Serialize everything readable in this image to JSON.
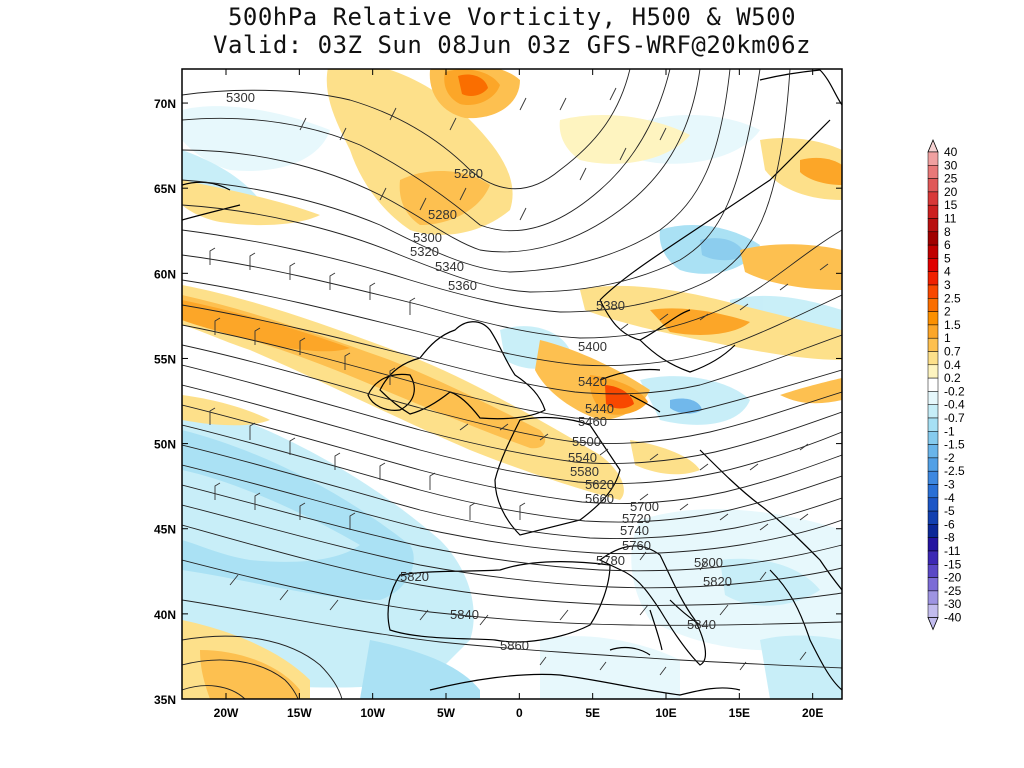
{
  "title": {
    "line1": "500hPa Relative Vorticity, H500 & W500",
    "line2": "Valid: 03Z Sun 08Jun 03z GFS-WRF@20km06z"
  },
  "map": {
    "lon_range": [
      -23,
      22
    ],
    "lat_range": [
      35,
      72
    ],
    "x_ticks": [
      "20W",
      "15W",
      "10W",
      "5W",
      "0",
      "5E",
      "10E",
      "15E",
      "20E"
    ],
    "y_ticks": [
      "70N",
      "65N",
      "60N",
      "55N",
      "50N",
      "45N",
      "40N",
      "35N"
    ],
    "contour_labels": [
      "5300",
      "5260",
      "5280",
      "5300",
      "5320",
      "5340",
      "5360",
      "5380",
      "5400",
      "5420",
      "5440",
      "5460",
      "5500",
      "5540",
      "5580",
      "5620",
      "5660",
      "5700",
      "5720",
      "5740",
      "5760",
      "5780",
      "5800",
      "5820",
      "5820",
      "5840",
      "5840",
      "5860"
    ]
  },
  "colorbar": {
    "levels": [
      "40",
      "30",
      "25",
      "20",
      "15",
      "11",
      "8",
      "6",
      "5",
      "4",
      "3",
      "2.5",
      "2",
      "1.5",
      "1",
      "0.7",
      "0.4",
      "0.2",
      "-0.2",
      "-0.4",
      "-0.7",
      "-1",
      "-1.5",
      "-2",
      "-2.5",
      "-3",
      "-4",
      "-5",
      "-6",
      "-8",
      "-11",
      "-15",
      "-20",
      "-25",
      "-30",
      "-40"
    ],
    "colors": [
      "#f6d2d2",
      "#f0a0a0",
      "#e87878",
      "#e05858",
      "#d83838",
      "#cc2020",
      "#b81010",
      "#a00000",
      "#c00000",
      "#e00000",
      "#f02000",
      "#f84800",
      "#fa6e00",
      "#fc9000",
      "#fca628",
      "#fdc050",
      "#fde08a",
      "#fef4c0",
      "#ffffff",
      "#e6f8fc",
      "#c6eef8",
      "#a6e0f4",
      "#86cbee",
      "#6ab5ea",
      "#52a0e6",
      "#3e88e0",
      "#2a70d6",
      "#1c56c6",
      "#1240b0",
      "#0c2898",
      "#2414a0",
      "#3c28b4",
      "#5a48c6",
      "#7c6cd6",
      "#9e94e2",
      "#c2bcee"
    ]
  }
}
